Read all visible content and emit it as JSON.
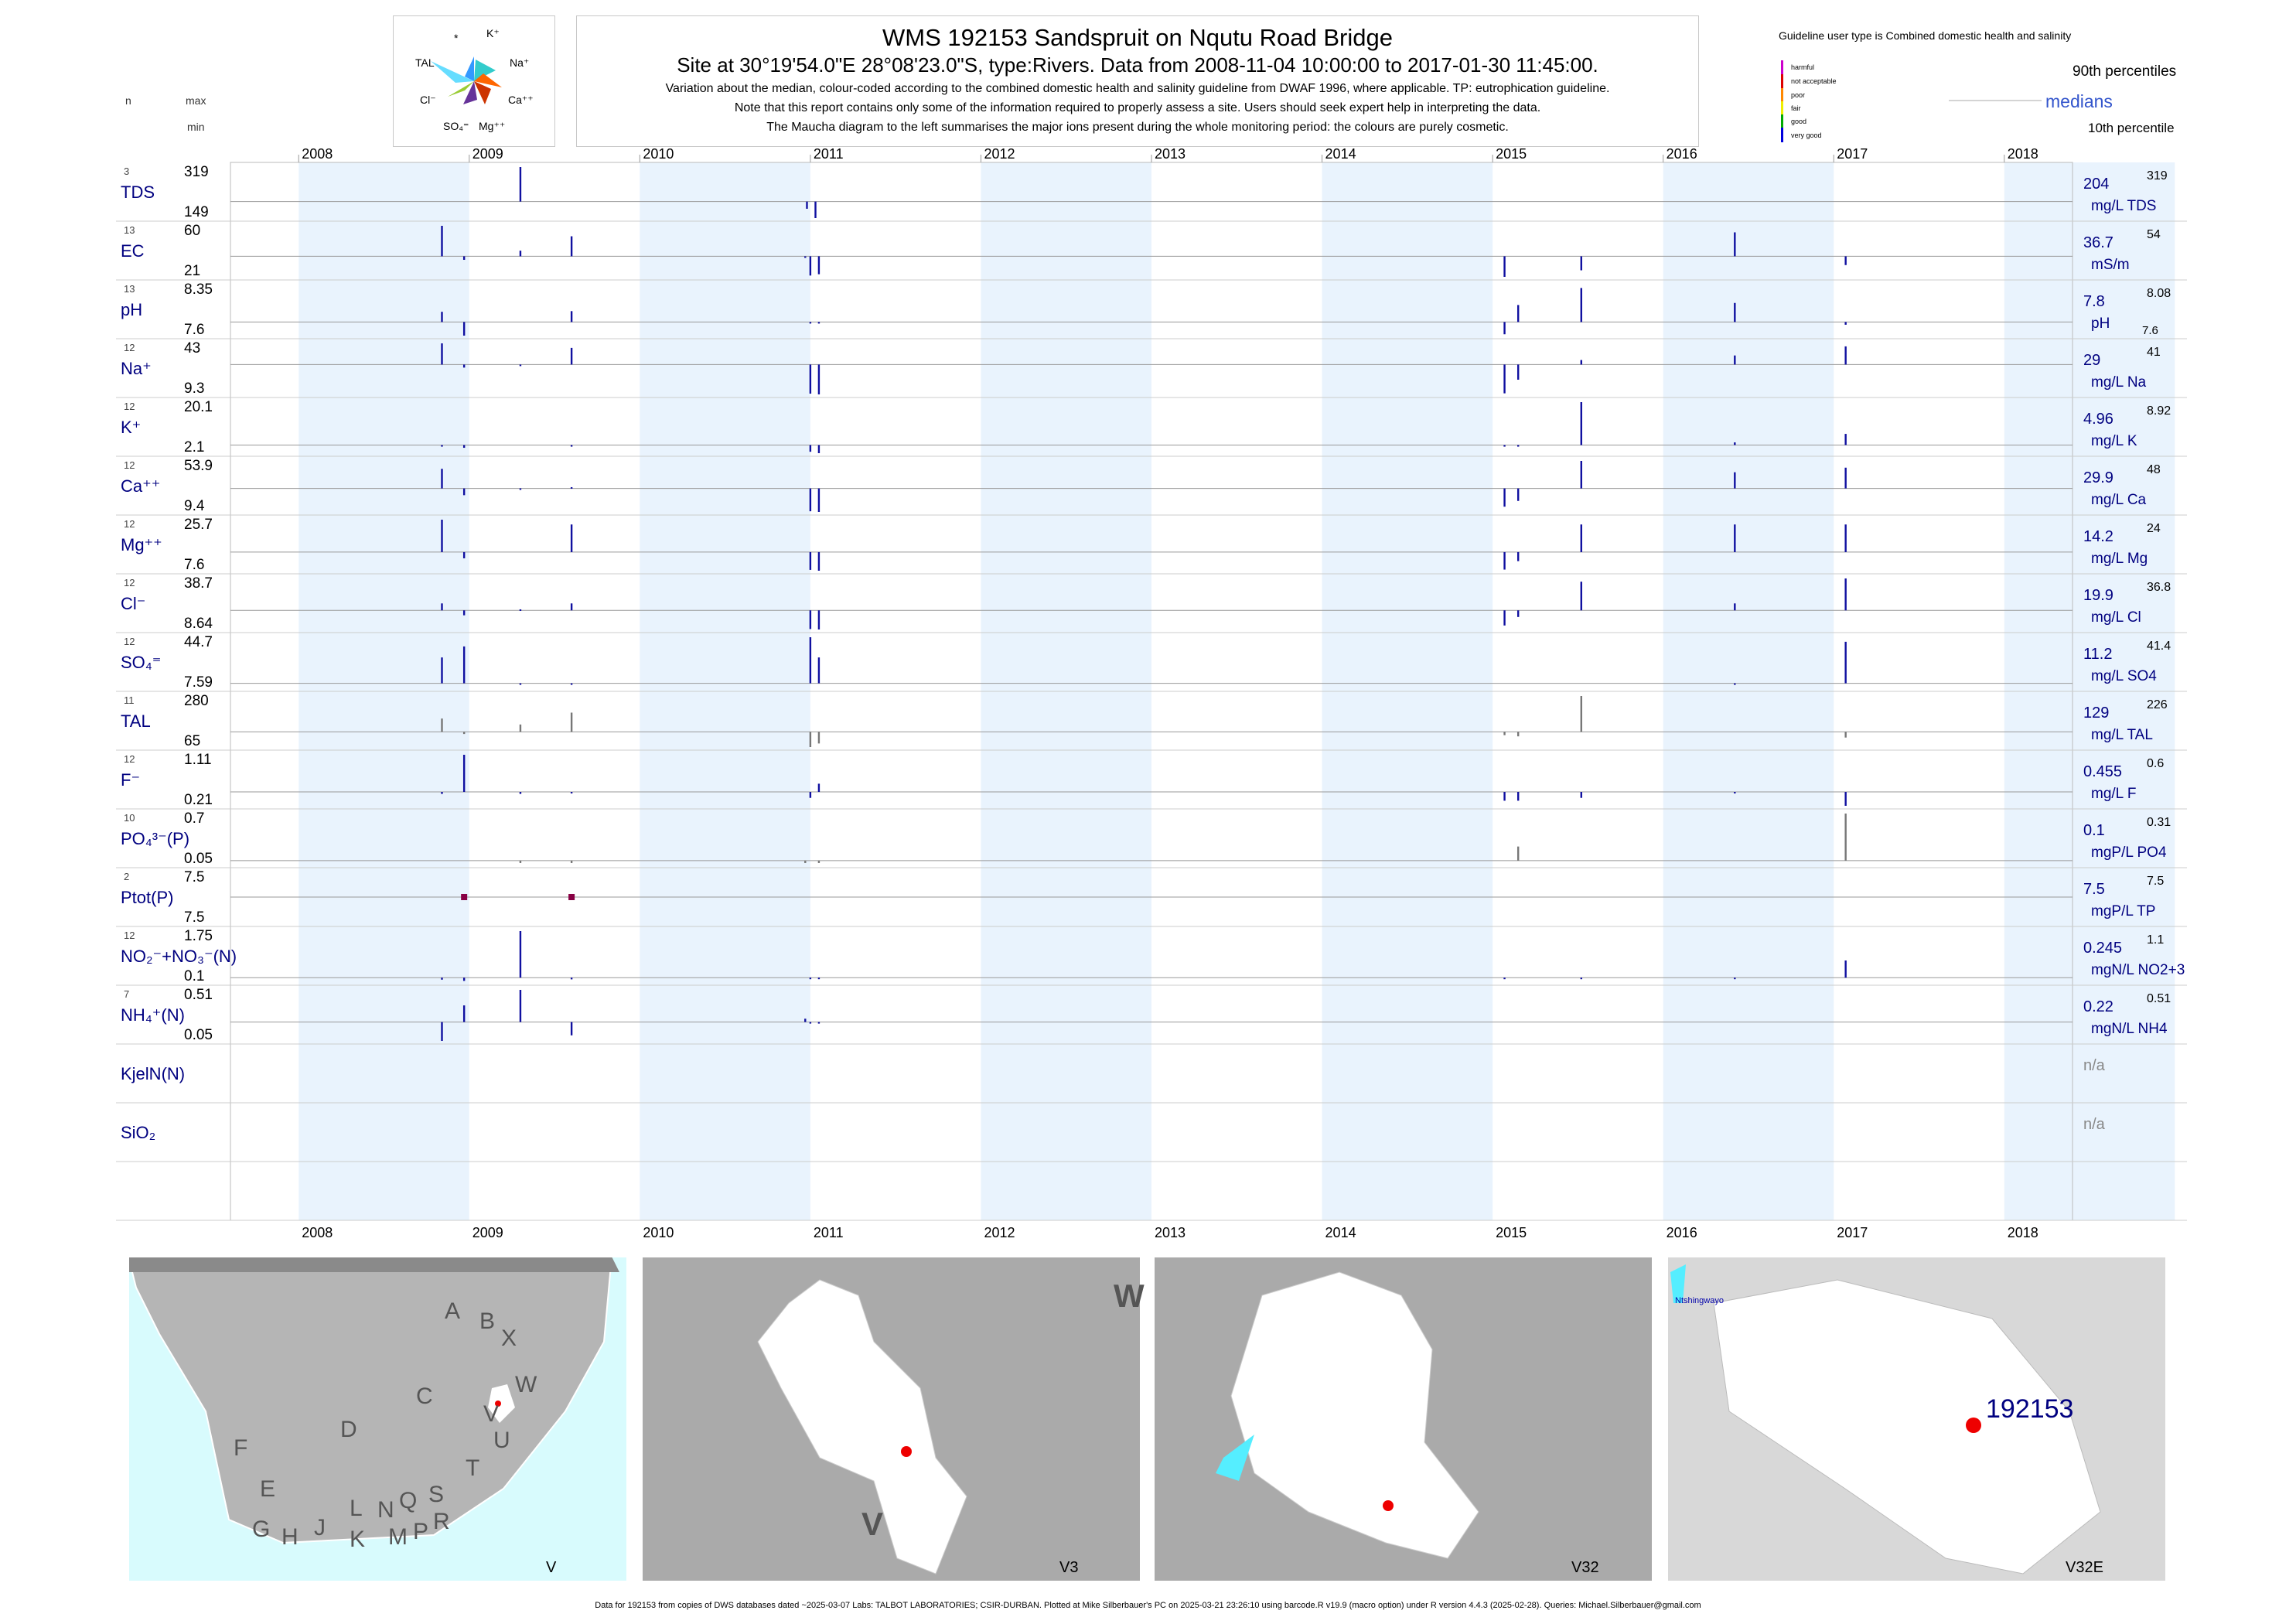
{
  "title": "WMS 192153  Sandspruit on Nqutu Road Bridge",
  "subtitle": "Site at 30°19'54.0\"E 28°08'23.0\"S, type:Rivers.  Data from 2008-11-04 10:00:00 to 2017-01-30 11:45:00.",
  "notes": [
    "Variation about the median,  colour-coded according to the combined domestic health and salinity guideline from DWAF 1996, where applicable. TP: eutrophication guideline.",
    "Note that this report contains only some of the information required to properly assess a site. Users should seek expert help in interpreting the data.",
    "The Maucha diagram to the left summarises the major ions present during the whole monitoring period: the colours are purely cosmetic."
  ],
  "maucha_labels": {
    "star": "*",
    "k": "K⁺",
    "na": "Na⁺",
    "ca": "Ca⁺⁺",
    "mg": "Mg⁺⁺",
    "so4": "SO₄⁼",
    "cl": "Cl⁻",
    "tal": "TAL"
  },
  "legend": {
    "guideline_title": "Guideline user type is Combined domestic health and salinity",
    "classes": [
      {
        "label": "harmful",
        "color": "#cc00cc"
      },
      {
        "label": "not acceptable",
        "color": "#dd0000"
      },
      {
        "label": "poor",
        "color": "#ff8800"
      },
      {
        "label": "fair",
        "color": "#eeee00"
      },
      {
        "label": "good",
        "color": "#00aa00"
      },
      {
        "label": "very good",
        "color": "#0000dd"
      }
    ],
    "p90": "90th percentiles",
    "medians": "medians",
    "p10": "10th percentile"
  },
  "column_headers": {
    "n": "n",
    "max": "max",
    "min": "min"
  },
  "colors": {
    "band": "#e9f3fd",
    "median_line": "#999999",
    "bar": "#1010a0",
    "bar_grey": "#777777",
    "tp_marker": "#880044",
    "text_blue": "#000080"
  },
  "chart_data": {
    "type": "bar",
    "description_axis": "Year",
    "years": [
      "2008",
      "2009",
      "2010",
      "2011",
      "2012",
      "2013",
      "2014",
      "2015",
      "2016",
      "2017",
      "2018"
    ],
    "x_range": [
      2007.6,
      2018.4
    ],
    "rows": [
      {
        "name": "TDS",
        "n": "3",
        "max": "319",
        "min": "149",
        "median_label": "204",
        "unit_label": "mg/L TDS",
        "p90": "319",
        "p10": "",
        "max_v": 319,
        "min_v": 149,
        "median_v": 204,
        "samples": [
          [
            2009.3,
            319
          ],
          [
            2010.98,
            180
          ],
          [
            2011.03,
            149
          ]
        ]
      },
      {
        "name": "EC",
        "n": "13",
        "max": "60",
        "min": "21",
        "median_label": "36.7",
        "unit_label": "mS/m",
        "p90": "54",
        "p10": "",
        "max_v": 60,
        "min_v": 21,
        "median_v": 36.7,
        "samples": [
          [
            2008.84,
            60
          ],
          [
            2008.97,
            34
          ],
          [
            2009.3,
            41
          ],
          [
            2009.6,
            52
          ],
          [
            2010.97,
            36
          ],
          [
            2011.0,
            22
          ],
          [
            2011.05,
            23
          ],
          [
            2015.07,
            21
          ],
          [
            2015.52,
            26
          ],
          [
            2016.42,
            55
          ],
          [
            2017.07,
            30
          ]
        ]
      },
      {
        "name": "pH",
        "n": "13",
        "max": "8.35",
        "min": "7.6",
        "median_label": "7.8",
        "unit_label": "pH",
        "p90": "8.08",
        "p10": "7.6",
        "max_v": 8.35,
        "min_v": 7.6,
        "median_v": 7.8,
        "samples": [
          [
            2008.84,
            7.95
          ],
          [
            2008.97,
            7.6
          ],
          [
            2009.6,
            7.96
          ],
          [
            2011.0,
            7.8
          ],
          [
            2011.05,
            7.8
          ],
          [
            2015.07,
            7.62
          ],
          [
            2015.15,
            8.05
          ],
          [
            2015.52,
            8.3
          ],
          [
            2016.42,
            8.08
          ],
          [
            2017.07,
            7.76
          ]
        ]
      },
      {
        "name": "Na⁺",
        "n": "12",
        "max": "43",
        "min": "9.3",
        "median_label": "29",
        "unit_label": "mg/L Na",
        "p90": "41",
        "p10": "",
        "max_v": 43,
        "min_v": 9.3,
        "median_v": 29,
        "samples": [
          [
            2008.84,
            43
          ],
          [
            2008.97,
            27
          ],
          [
            2009.3,
            28
          ],
          [
            2009.6,
            40
          ],
          [
            2011.0,
            9.8
          ],
          [
            2011.05,
            9.3
          ],
          [
            2015.07,
            10
          ],
          [
            2015.15,
            19
          ],
          [
            2015.52,
            32
          ],
          [
            2016.42,
            35
          ],
          [
            2017.07,
            41
          ]
        ]
      },
      {
        "name": "K⁺",
        "n": "12",
        "max": "20.1",
        "min": "2.1",
        "median_label": "4.96",
        "unit_label": "mg/L K",
        "p90": "8.92",
        "p10": "",
        "max_v": 20.1,
        "min_v": 2.1,
        "median_v": 4.96,
        "samples": [
          [
            2008.84,
            4.4
          ],
          [
            2008.97,
            4.0
          ],
          [
            2009.6,
            4.4
          ],
          [
            2011.0,
            2.6
          ],
          [
            2011.05,
            2.1
          ],
          [
            2015.07,
            4.4
          ],
          [
            2015.15,
            4.4
          ],
          [
            2015.52,
            20.1
          ],
          [
            2016.42,
            5.9
          ],
          [
            2017.07,
            8.9
          ]
        ]
      },
      {
        "name": "Ca⁺⁺",
        "n": "12",
        "max": "53.9",
        "min": "9.4",
        "median_label": "29.9",
        "unit_label": "mg/L Ca",
        "p90": "48",
        "p10": "",
        "max_v": 53.9,
        "min_v": 9.4,
        "median_v": 29.9,
        "samples": [
          [
            2008.84,
            47
          ],
          [
            2008.97,
            24
          ],
          [
            2009.3,
            30
          ],
          [
            2009.6,
            31
          ],
          [
            2011.0,
            10
          ],
          [
            2011.05,
            9.4
          ],
          [
            2015.07,
            14
          ],
          [
            2015.15,
            19
          ],
          [
            2015.52,
            53.9
          ],
          [
            2016.42,
            44
          ],
          [
            2017.07,
            48
          ]
        ]
      },
      {
        "name": "Mg⁺⁺",
        "n": "12",
        "max": "25.7",
        "min": "7.6",
        "median_label": "14.2",
        "unit_label": "mg/L Mg",
        "p90": "24",
        "p10": "",
        "max_v": 25.7,
        "min_v": 7.6,
        "median_v": 14.2,
        "samples": [
          [
            2008.84,
            25.7
          ],
          [
            2008.97,
            12
          ],
          [
            2009.6,
            24
          ],
          [
            2011.0,
            7.9
          ],
          [
            2011.05,
            7.6
          ],
          [
            2015.07,
            8
          ],
          [
            2015.15,
            11
          ],
          [
            2015.52,
            24
          ],
          [
            2016.42,
            24
          ],
          [
            2017.07,
            24
          ]
        ]
      },
      {
        "name": "Cl⁻",
        "n": "12",
        "max": "38.7",
        "min": "8.64",
        "median_label": "19.9",
        "unit_label": "mg/L Cl",
        "p90": "36.8",
        "p10": "",
        "max_v": 38.7,
        "min_v": 8.64,
        "median_v": 19.9,
        "samples": [
          [
            2008.84,
            24
          ],
          [
            2008.97,
            17
          ],
          [
            2009.3,
            20.5
          ],
          [
            2009.6,
            24
          ],
          [
            2011.0,
            8.9
          ],
          [
            2011.05,
            8.64
          ],
          [
            2015.07,
            11
          ],
          [
            2015.15,
            16
          ],
          [
            2015.52,
            36.8
          ],
          [
            2016.42,
            24
          ],
          [
            2017.07,
            38.7
          ]
        ]
      },
      {
        "name": "SO₄⁼",
        "n": "12",
        "max": "44.7",
        "min": "7.59",
        "median_label": "11.2",
        "unit_label": "mg/L SO4",
        "p90": "41.4",
        "p10": "",
        "max_v": 44.7,
        "min_v": 7.59,
        "median_v": 11.2,
        "samples": [
          [
            2008.84,
            30
          ],
          [
            2008.97,
            38
          ],
          [
            2009.3,
            10.5
          ],
          [
            2009.6,
            10.5
          ],
          [
            2011.0,
            44.7
          ],
          [
            2011.05,
            30
          ],
          [
            2016.42,
            10.5
          ],
          [
            2017.07,
            41.4
          ]
        ]
      },
      {
        "name": "TAL",
        "n": "11",
        "max": "280",
        "min": "65",
        "median_label": "129",
        "unit_label": "mg/L TAL",
        "p90": "226",
        "p10": "",
        "max_v": 280,
        "min_v": 65,
        "median_v": 129,
        "samples": [
          [
            2008.84,
            185
          ],
          [
            2008.97,
            120
          ],
          [
            2009.3,
            160
          ],
          [
            2009.6,
            210
          ],
          [
            2011.0,
            65
          ],
          [
            2011.05,
            80
          ],
          [
            2015.07,
            115
          ],
          [
            2015.15,
            110
          ],
          [
            2015.52,
            280
          ],
          [
            2017.07,
            105
          ]
        ]
      },
      {
        "name": "F⁻",
        "n": "12",
        "max": "1.11",
        "min": "0.21",
        "median_label": "0.455",
        "unit_label": "mg/L F",
        "p90": "0.6",
        "p10": "",
        "max_v": 1.11,
        "min_v": 0.21,
        "median_v": 0.455,
        "samples": [
          [
            2008.84,
            0.42
          ],
          [
            2008.97,
            1.11
          ],
          [
            2009.3,
            0.42
          ],
          [
            2009.6,
            0.43
          ],
          [
            2011.0,
            0.35
          ],
          [
            2011.05,
            0.6
          ],
          [
            2015.07,
            0.3
          ],
          [
            2015.15,
            0.3
          ],
          [
            2015.52,
            0.35
          ],
          [
            2016.42,
            0.44
          ],
          [
            2017.07,
            0.21
          ]
        ]
      },
      {
        "name": "PO₄³⁻(P)",
        "n": "10",
        "max": "0.7",
        "min": "0.05",
        "median_label": "0.1",
        "unit_label": "mgP/L PO4",
        "p90": "0.31",
        "p10": "",
        "max_v": 0.7,
        "min_v": 0.05,
        "median_v": 0.1,
        "samples": [
          [
            2009.3,
            0.07
          ],
          [
            2009.6,
            0.07
          ],
          [
            2010.97,
            0.07
          ],
          [
            2011.05,
            0.07
          ],
          [
            2015.15,
            0.28
          ],
          [
            2017.07,
            0.7
          ]
        ]
      },
      {
        "name": "Ptot(P)",
        "n": "2",
        "max": "7.5",
        "min": "7.5",
        "median_label": "7.5",
        "unit_label": "mgP/L TP",
        "p90": "7.5",
        "p10": "",
        "max_v": 7.5,
        "min_v": 7.5,
        "median_v": 7.5,
        "samples": [
          [
            2008.97,
            7.5
          ],
          [
            2009.6,
            7.5
          ]
        ]
      },
      {
        "name": "NO₂⁻+NO₃⁻(N)",
        "n": "12",
        "max": "1.75",
        "min": "0.1",
        "median_label": "0.245",
        "unit_label": "mgN/L NO2+3",
        "p90": "1.1",
        "p10": "",
        "max_v": 1.75,
        "min_v": 0.1,
        "median_v": 0.245,
        "samples": [
          [
            2008.84,
            0.18
          ],
          [
            2008.97,
            0.14
          ],
          [
            2009.3,
            1.75
          ],
          [
            2009.6,
            0.19
          ],
          [
            2011.0,
            0.2
          ],
          [
            2011.05,
            0.2
          ],
          [
            2015.07,
            0.2
          ],
          [
            2015.52,
            0.2
          ],
          [
            2016.42,
            0.2
          ],
          [
            2017.07,
            0.8
          ]
        ]
      },
      {
        "name": "NH₄⁺(N)",
        "n": "7",
        "max": "0.51",
        "min": "0.05",
        "median_label": "0.22",
        "unit_label": "mgN/L NH4",
        "p90": "0.51",
        "p10": "",
        "max_v": 0.51,
        "min_v": 0.05,
        "median_v": 0.22,
        "samples": [
          [
            2008.84,
            0.05
          ],
          [
            2008.97,
            0.37
          ],
          [
            2009.3,
            0.51
          ],
          [
            2009.6,
            0.1
          ],
          [
            2010.97,
            0.25
          ],
          [
            2011.0,
            0.22
          ],
          [
            2011.05,
            0.22
          ]
        ]
      },
      {
        "name": "KjelN(N)",
        "n": "",
        "max": "",
        "min": "",
        "median_label": "n/a",
        "unit_label": "",
        "p90": "",
        "p10": "",
        "empty": true,
        "samples": []
      },
      {
        "name": "SiO₂",
        "n": "",
        "max": "",
        "min": "",
        "median_label": "n/a",
        "unit_label": "",
        "p90": "",
        "p10": "",
        "empty": true,
        "samples": []
      }
    ]
  },
  "maps": [
    {
      "label": "V",
      "regions": [
        "A",
        "B",
        "X",
        "C",
        "W",
        "V",
        "D",
        "U",
        "F",
        "T",
        "E",
        "L",
        "N",
        "Q",
        "S",
        "G",
        "H",
        "J",
        "K",
        "M",
        "P",
        "R"
      ]
    },
    {
      "label": "V3",
      "regions": [
        "W",
        "V"
      ]
    },
    {
      "label": "V32",
      "regions": []
    },
    {
      "label": "V32E",
      "regions": [],
      "place": "Ntshingwayo",
      "site": "192153"
    }
  ],
  "footer": "Data for 192153 from copies of DWS databases dated ~2025-03-07 Labs: TALBOT LABORATORIES; CSIR-DURBAN. Plotted at Mike Silberbauer's PC on 2025-03-21 23:26:10 using barcode.R v19.9 (macro option) under R version 4.4.3 (2025-02-28). Queries: Michael.Silberbauer@gmail.com"
}
